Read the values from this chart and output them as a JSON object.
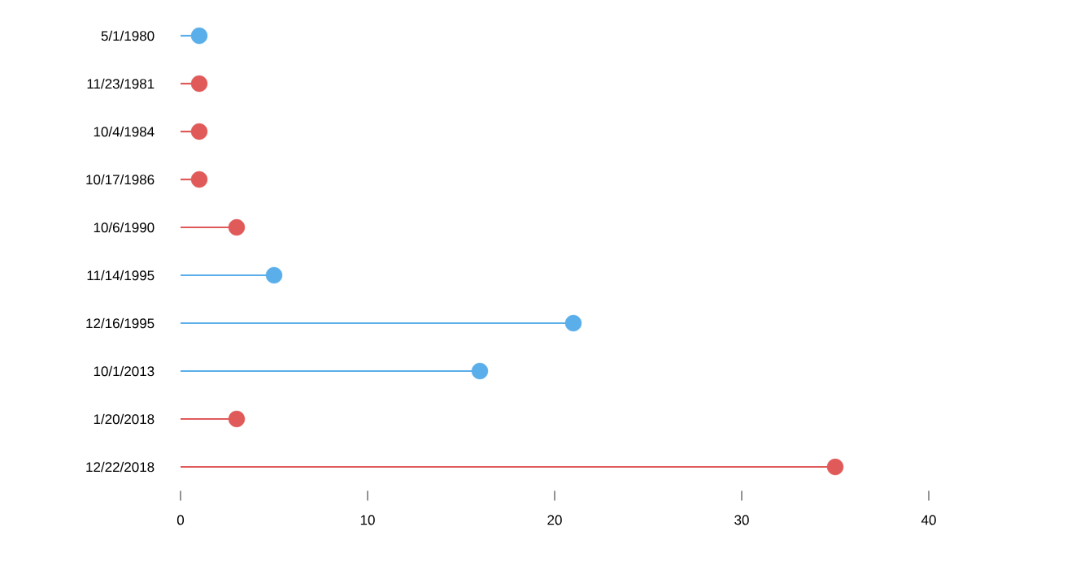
{
  "chart_data": {
    "type": "lollipop",
    "orientation": "horizontal",
    "marker": "circle",
    "grid": false,
    "categories": [
      "5/1/1980",
      "11/23/1981",
      "10/4/1984",
      "10/17/1986",
      "10/6/1990",
      "11/14/1995",
      "12/16/1995",
      "10/1/2013",
      "1/20/2018",
      "12/22/2018"
    ],
    "values": [
      1,
      1,
      1,
      1,
      3,
      5,
      21,
      16,
      3,
      35
    ],
    "colors": [
      "#5aaeea",
      "#e05a5a",
      "#e05a5a",
      "#e05a5a",
      "#e05a5a",
      "#5aaeea",
      "#5aaeea",
      "#5aaeea",
      "#e05a5a",
      "#e05a5a"
    ],
    "xlim": [
      0,
      40
    ],
    "xticks": [
      0,
      10,
      20,
      30,
      40
    ]
  }
}
